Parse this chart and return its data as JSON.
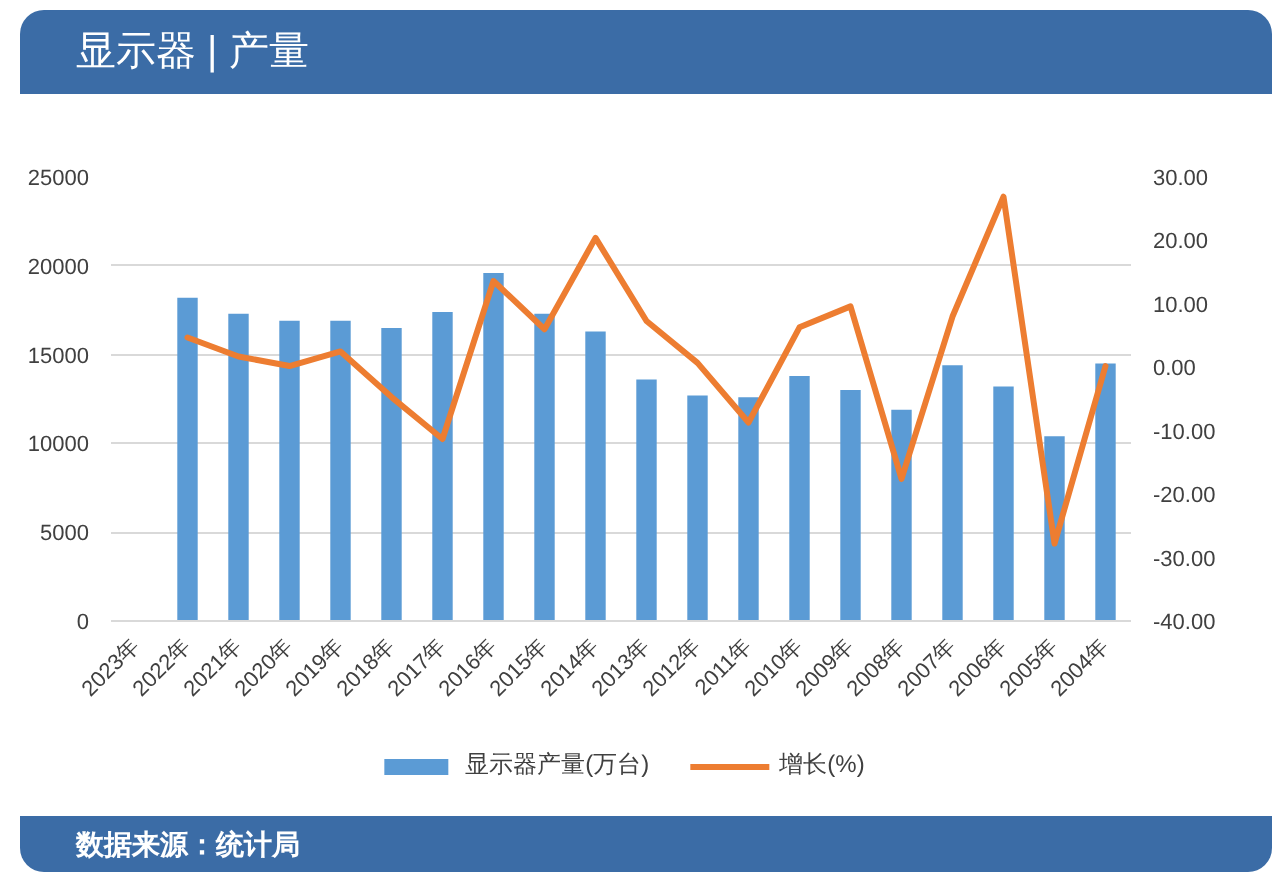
{
  "chart_data": {
    "type": "bar",
    "title": "显示器 | 产量",
    "annotations": [
      "数据来源：统计局"
    ],
    "categories": [
      "2023年",
      "2022年",
      "2021年",
      "2020年",
      "2019年",
      "2018年",
      "2017年",
      "2016年",
      "2015年",
      "2014年",
      "2013年",
      "2012年",
      "2011年",
      "2010年",
      "2009年",
      "2008年",
      "2007年",
      "2006年",
      "2005年",
      "2004年"
    ],
    "series": [
      {
        "name": "显示器产量(万台)",
        "color": "#5b9bd5",
        "values": [
          null,
          18200,
          17300,
          16900,
          16900,
          16500,
          17400,
          19600,
          17300,
          16300,
          13600,
          12700,
          12600,
          13800,
          13000,
          11900,
          14400,
          13200,
          10400,
          14500
        ]
      },
      {
        "name": "增长(%)",
        "type": "line",
        "axis": "y2",
        "color": "#ed7d31",
        "values": [
          null,
          4.7,
          1.7,
          0.2,
          2.5,
          -4.7,
          -11.3,
          13.6,
          6.0,
          20.4,
          7.3,
          0.7,
          -8.7,
          6.3,
          9.6,
          -17.6,
          8.0,
          26.9,
          -27.8,
          0.2
        ]
      }
    ],
    "ylim": [
      0,
      25000
    ],
    "yticks": [
      0,
      5000,
      10000,
      15000,
      20000,
      25000
    ],
    "y2lim": [
      -40,
      30
    ],
    "y2ticks": [
      {
        "value": -40,
        "label": "-40.00"
      },
      {
        "value": -30,
        "label": "-30.00"
      },
      {
        "value": -20,
        "label": "-20.00"
      },
      {
        "value": -10,
        "label": "-10.00"
      },
      {
        "value": 0,
        "label": "0.00"
      },
      {
        "value": 10,
        "label": "10.00"
      },
      {
        "value": 20,
        "label": "20.00"
      },
      {
        "value": 30,
        "label": "30.00"
      }
    ],
    "grid": "y",
    "legend": "bottom"
  }
}
